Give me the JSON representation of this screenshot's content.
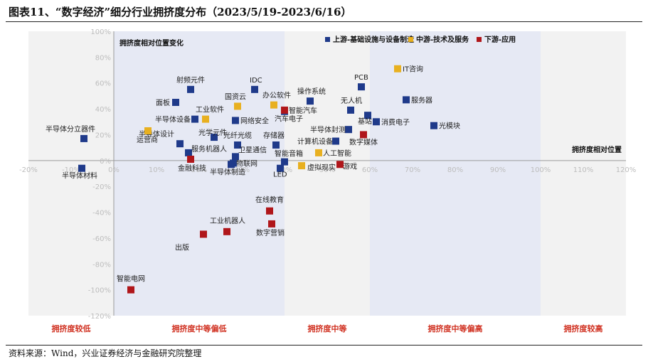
{
  "header": {
    "title": "图表11、“数字经济”细分行业拥挤度分布（2023/5/19-2023/6/16）"
  },
  "footer": {
    "source": "资料来源：Wind，兴业证券经济与金融研究院整理"
  },
  "chart_data": {
    "type": "scatter",
    "title": "图表11、“数字经济”细分行业拥挤度分布（2023/5/19-2023/6/16）",
    "xlabel": "拥挤度相对位置",
    "ylabel": "拥挤度相对位置变化",
    "xlim": [
      -20,
      120
    ],
    "ylim": [
      -120,
      100
    ],
    "x_ticks": [
      "-20%",
      "-10%",
      "0%",
      "10%",
      "20%",
      "30%",
      "40%",
      "50%",
      "60%",
      "70%",
      "80%",
      "90%",
      "100%",
      "110%",
      "120%"
    ],
    "y_ticks": [
      "100%",
      "80%",
      "60%",
      "40%",
      "20%",
      "0%",
      "-20%",
      "-40%",
      "-60%",
      "-80%",
      "-100%",
      "-120%"
    ],
    "zones": [
      "拥挤度较低",
      "拥挤度中等偏低",
      "拥挤度中等",
      "拥挤度中等偏高",
      "拥挤度较高"
    ],
    "series": [
      {
        "name": "上游-基础设施与设备制造",
        "color": "#1f3a8a",
        "points": [
          {
            "label": "半导体分立器件",
            "x": -7,
            "y": 17
          },
          {
            "label": "半导体材料",
            "x": -7.5,
            "y": -6
          },
          {
            "label": "射频元件",
            "x": 18,
            "y": 55
          },
          {
            "label": "面板",
            "x": 14.5,
            "y": 45
          },
          {
            "label": "半导体设备",
            "x": 19,
            "y": 32
          },
          {
            "label": "光学元件",
            "x": 23.5,
            "y": 18
          },
          {
            "label": "半导体设计",
            "x": 15.5,
            "y": 13
          },
          {
            "label": "服务机器人",
            "x": 17.5,
            "y": 6
          },
          {
            "label": "IDC",
            "x": 33,
            "y": 55
          },
          {
            "label": "网络安全",
            "x": 28.5,
            "y": 31
          },
          {
            "label": "光纤光缆",
            "x": 29,
            "y": 12
          },
          {
            "label": "卫星通信",
            "x": 28.5,
            "y": 3
          },
          {
            "label": "物联网",
            "x": 28,
            "y": -2
          },
          {
            "label": "半导体制造",
            "x": 27.5,
            "y": -3
          },
          {
            "label": "操作系统",
            "x": 46,
            "y": 46
          },
          {
            "label": "汽车电子",
            "x": 40,
            "y": 38
          },
          {
            "label": "存储器",
            "x": 38,
            "y": 12
          },
          {
            "label": "智能音箱",
            "x": 40,
            "y": -1
          },
          {
            "label": "LED",
            "x": 39,
            "y": -6
          },
          {
            "label": "PCB",
            "x": 58,
            "y": 57
          },
          {
            "label": "无人机",
            "x": 55.5,
            "y": 39
          },
          {
            "label": "服务器",
            "x": 68.5,
            "y": 47
          },
          {
            "label": "消费电子",
            "x": 61.5,
            "y": 30
          },
          {
            "label": "基站",
            "x": 59.5,
            "y": 35
          },
          {
            "label": "半导体封测",
            "x": 55,
            "y": 24
          },
          {
            "label": "计算机设备",
            "x": 52,
            "y": 15
          },
          {
            "label": "光模块",
            "x": 75,
            "y": 27
          }
        ]
      },
      {
        "name": "中游-技术及服务",
        "color": "#e8b020",
        "points": [
          {
            "label": "运营商",
            "x": 8,
            "y": 23
          },
          {
            "label": "工业软件",
            "x": 21.5,
            "y": 32
          },
          {
            "label": "国资云",
            "x": 29,
            "y": 42
          },
          {
            "label": "办公软件",
            "x": 37.5,
            "y": 43
          },
          {
            "label": "IT咨询",
            "x": 66.5,
            "y": 71
          },
          {
            "label": "人工智能",
            "x": 48,
            "y": 6
          },
          {
            "label": "虚拟现实",
            "x": 44,
            "y": -4
          }
        ]
      },
      {
        "name": "下游-应用",
        "color": "#b0161a",
        "points": [
          {
            "label": "智能汽车",
            "x": 40,
            "y": 39
          },
          {
            "label": "数字媒体",
            "x": 58.5,
            "y": 20
          },
          {
            "label": "金融科技",
            "x": 18,
            "y": 1
          },
          {
            "label": "游戏",
            "x": 53,
            "y": -3
          },
          {
            "label": "在线教育",
            "x": 36.5,
            "y": -39
          },
          {
            "label": "数字营销",
            "x": 37,
            "y": -49
          },
          {
            "label": "工业机器人",
            "x": 26.5,
            "y": -55
          },
          {
            "label": "出版",
            "x": 21,
            "y": -57
          },
          {
            "label": "智能电网",
            "x": 4,
            "y": -100
          }
        ]
      }
    ]
  }
}
